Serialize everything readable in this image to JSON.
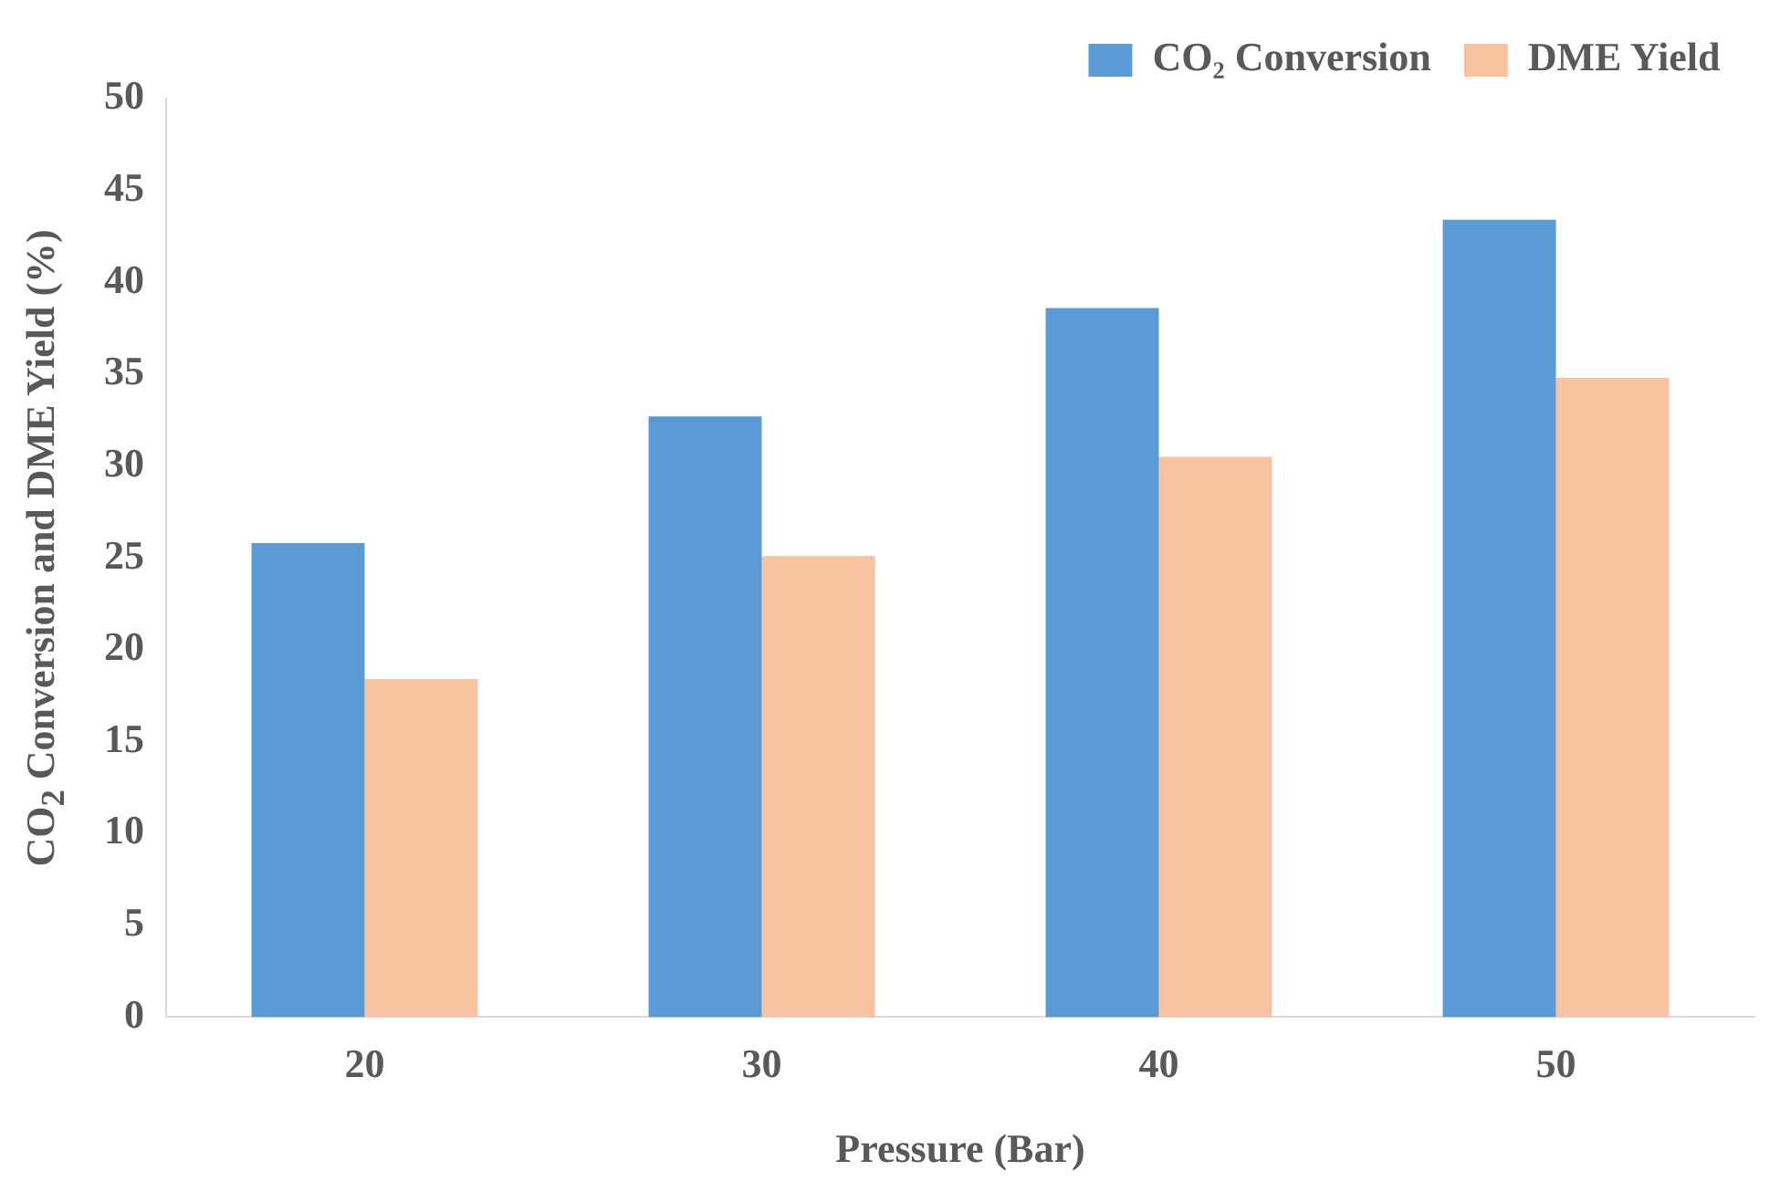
{
  "chart_data": {
    "type": "bar",
    "xlabel": "Pressure (Bar)",
    "ylabel": "CO$_{2}$ Conversion and DME Yield (%)",
    "categories": [
      "20",
      "30",
      "40",
      "50"
    ],
    "series": [
      {
        "name": "CO₂ Conversion",
        "color": "#5b9bd5",
        "values": [
          25.8,
          32.7,
          38.6,
          43.4
        ]
      },
      {
        "name": "DME Yield",
        "color": "#f7c3a0",
        "values": [
          18.4,
          25.1,
          30.5,
          34.8
        ]
      }
    ],
    "ylim": [
      0,
      50
    ],
    "yticks": [
      0,
      5,
      10,
      15,
      20,
      25,
      30,
      35,
      40,
      45,
      50
    ],
    "grid": false,
    "legend": "top right"
  }
}
